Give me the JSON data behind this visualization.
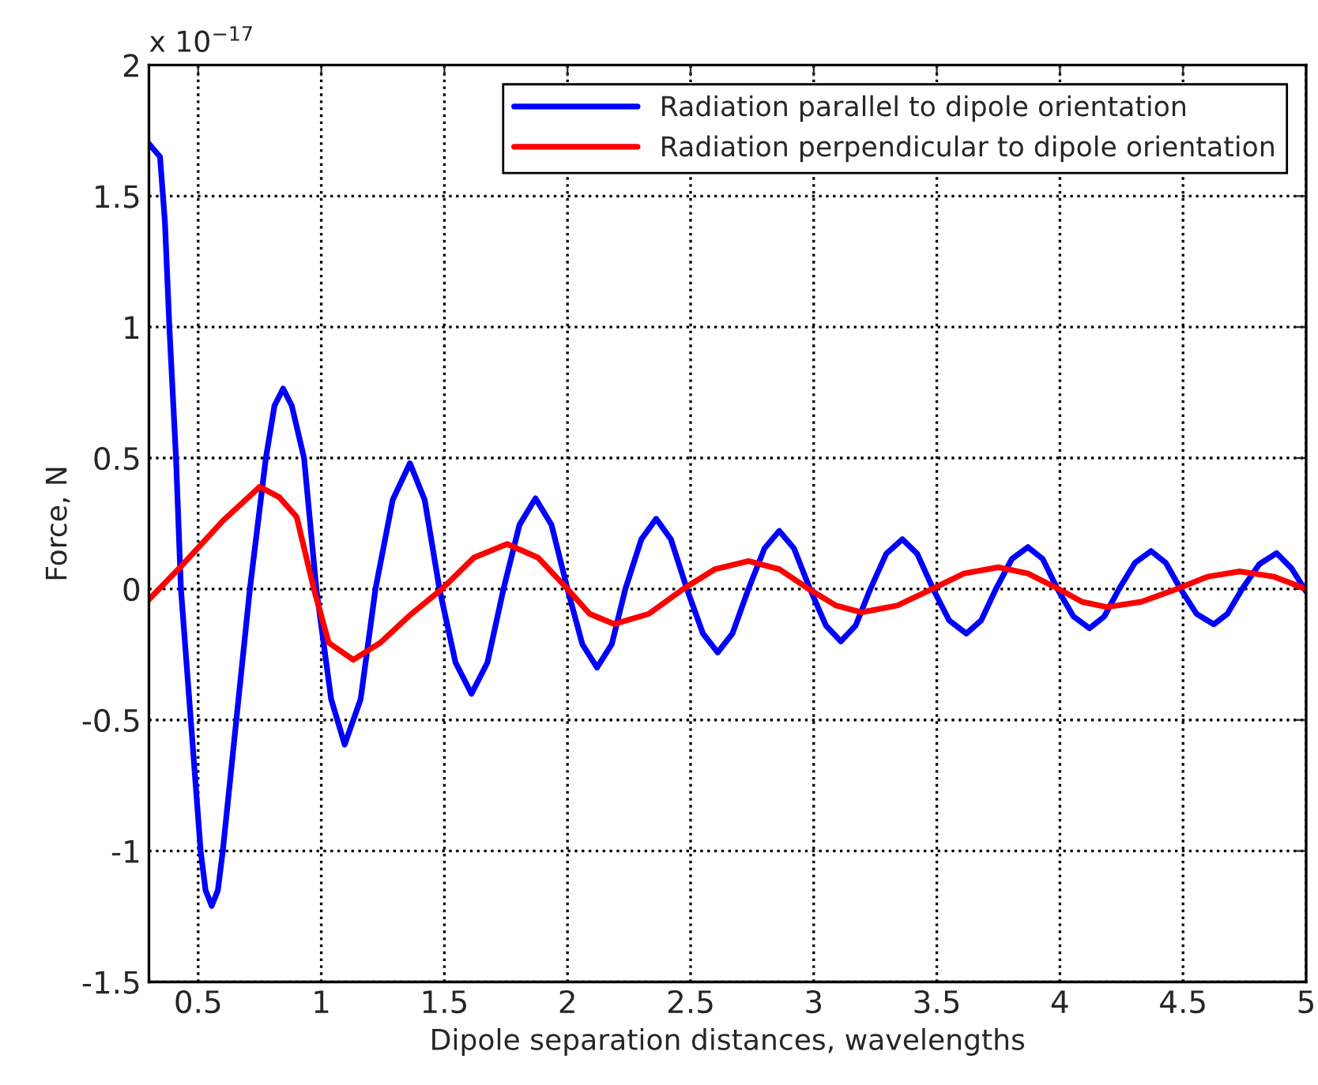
{
  "chart_data": {
    "type": "line",
    "xlabel": "Dipole separation distances, wavelengths",
    "ylabel": "Force, N",
    "annotations": [
      "x 10$^{−17}$"
    ],
    "xlim": [
      0.3,
      5
    ],
    "xticks": [
      0.5,
      1,
      1.5,
      2,
      2.5,
      3,
      3.5,
      4,
      4.5,
      5
    ],
    "ylim": [
      -1.5,
      2
    ],
    "yticks": [
      -1.5,
      -1,
      -0.5,
      0,
      0.5,
      1,
      1.5,
      2
    ],
    "grid": true,
    "legend": "top right",
    "line_style": "solid",
    "marker": "none",
    "series": [
      {
        "name": "Radiation parallel to dipole orientation",
        "color": "#0000ff",
        "x": [
          0.3,
          0.345,
          0.365,
          0.383,
          0.41,
          0.43,
          0.47,
          0.51,
          0.53,
          0.555,
          0.58,
          0.6,
          0.655,
          0.71,
          0.775,
          0.81,
          0.845,
          0.88,
          0.93,
          0.98,
          1.04,
          1.095,
          1.16,
          1.22,
          1.29,
          1.36,
          1.42,
          1.48,
          1.545,
          1.61,
          1.675,
          1.74,
          1.805,
          1.87,
          1.935,
          2.0,
          2.06,
          2.12,
          2.18,
          2.235,
          2.3,
          2.36,
          2.42,
          2.485,
          2.55,
          2.61,
          2.67,
          2.735,
          2.8,
          2.86,
          2.92,
          2.985,
          3.05,
          3.11,
          3.17,
          3.23,
          3.295,
          3.36,
          3.42,
          3.485,
          3.55,
          3.62,
          3.68,
          3.74,
          3.805,
          3.87,
          3.93,
          3.99,
          4.055,
          4.12,
          4.18,
          4.24,
          4.305,
          4.37,
          4.43,
          4.49,
          4.555,
          4.625,
          4.68,
          4.74,
          4.81,
          4.88,
          4.94,
          5.0
        ],
        "values": [
          1.7,
          1.65,
          1.4,
          1.0,
          0.5,
          0,
          -0.5,
          -1.0,
          -1.15,
          -1.21,
          -1.15,
          -1.0,
          -0.5,
          0,
          0.5,
          0.7,
          0.765,
          0.7,
          0.5,
          0,
          -0.42,
          -0.594,
          -0.42,
          0,
          0.34,
          0.48,
          0.34,
          0,
          -0.28,
          -0.4,
          -0.28,
          0,
          0.245,
          0.346,
          0.245,
          0,
          -0.21,
          -0.3,
          -0.21,
          0,
          0.19,
          0.268,
          0.19,
          0,
          -0.17,
          -0.242,
          -0.17,
          0,
          0.155,
          0.222,
          0.155,
          0,
          -0.14,
          -0.2,
          -0.14,
          0,
          0.135,
          0.19,
          0.135,
          0,
          -0.12,
          -0.17,
          -0.12,
          0,
          0.115,
          0.16,
          0.115,
          0,
          -0.105,
          -0.15,
          -0.105,
          0,
          0.1,
          0.145,
          0.1,
          0,
          -0.095,
          -0.135,
          -0.095,
          0,
          0.095,
          0.137,
          0.08,
          -0.01
        ]
      },
      {
        "name": "Radiation perpendicular to dipole orientation",
        "color": "#ff0000",
        "x": [
          0.3,
          0.43,
          0.6,
          0.75,
          0.83,
          0.9,
          0.97,
          1.03,
          1.13,
          1.24,
          1.36,
          1.49,
          1.62,
          1.755,
          1.88,
          2.0,
          2.09,
          2.19,
          2.33,
          2.47,
          2.6,
          2.735,
          2.86,
          2.98,
          3.09,
          3.195,
          3.34,
          3.48,
          3.61,
          3.75,
          3.87,
          3.995,
          4.09,
          4.19,
          4.33,
          4.475,
          4.6,
          4.73,
          4.87,
          5.0
        ],
        "values": [
          -0.04,
          0.086,
          0.26,
          0.39,
          0.35,
          0.275,
          0,
          -0.205,
          -0.27,
          -0.205,
          -0.1,
          0,
          0.12,
          0.172,
          0.12,
          0,
          -0.095,
          -0.134,
          -0.095,
          0,
          0.076,
          0.107,
          0.076,
          0,
          -0.063,
          -0.089,
          -0.063,
          0,
          0.059,
          0.083,
          0.059,
          0,
          -0.049,
          -0.069,
          -0.049,
          0,
          0.047,
          0.067,
          0.047,
          0
        ]
      }
    ]
  }
}
